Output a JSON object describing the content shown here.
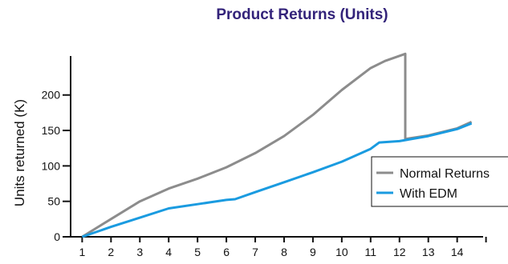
{
  "chart_data": {
    "type": "line",
    "title": "Product Returns (Units)",
    "xlabel": "",
    "ylabel": "Units returned (K)",
    "x_ticks": [
      1,
      2,
      3,
      4,
      5,
      6,
      7,
      8,
      9,
      10,
      11,
      12,
      13,
      14
    ],
    "y_ticks": [
      0,
      50,
      100,
      150,
      200
    ],
    "xlim": [
      0.6,
      14.9
    ],
    "ylim": [
      0,
      255
    ],
    "grid": false,
    "legend_position": "right",
    "colors": {
      "title": "#33237a",
      "normal": "#8c8c8c",
      "edm": "#1a9be0",
      "axis": "#111111"
    },
    "series": [
      {
        "name": "Normal Returns",
        "x": [
          1,
          2,
          3,
          4,
          5,
          6,
          7,
          8,
          9,
          10,
          11,
          11.5,
          12.2,
          12.2,
          13,
          14,
          14.5
        ],
        "y": [
          0,
          25,
          50,
          68,
          82,
          98,
          118,
          142,
          172,
          207,
          238,
          248,
          258,
          138,
          143,
          153,
          162
        ]
      },
      {
        "name": "With EDM",
        "x": [
          1,
          2,
          3,
          4,
          5,
          6,
          6.3,
          7,
          8,
          9,
          10,
          11,
          11.3,
          12,
          13,
          14,
          14.5
        ],
        "y": [
          0,
          14,
          27,
          40,
          46,
          52,
          53,
          63,
          77,
          91,
          106,
          124,
          133,
          135,
          142,
          152,
          160
        ]
      }
    ]
  }
}
